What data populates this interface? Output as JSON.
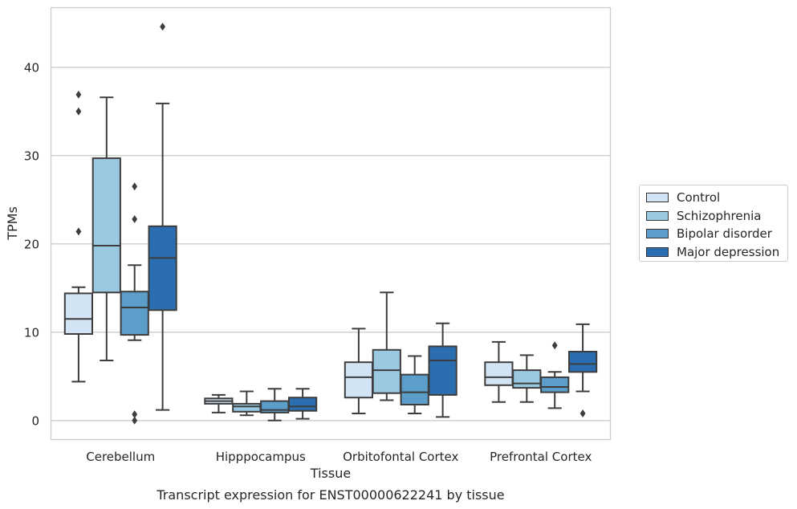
{
  "chart_data": {
    "type": "box",
    "caption": "Transcript expression for ENST00000622241 by tissue",
    "xlabel": "Tissue",
    "ylabel": "TPMs",
    "ylim": [
      -2.2,
      46.8
    ],
    "yticks": [
      0,
      10,
      20,
      30,
      40
    ],
    "grid": "horizontal",
    "legend_position": "right",
    "categories": [
      "Cerebellum",
      "Hipppocampus",
      "Orbitofontal Cortex",
      "Prefrontal Cortex"
    ],
    "series": [
      {
        "name": "Control",
        "color": "#d2e3f3",
        "boxes": [
          {
            "whisker_low": 4.4,
            "q1": 9.8,
            "median": 11.5,
            "q3": 14.4,
            "whisker_high": 15.1,
            "outliers": []
          },
          {
            "whisker_low": 0.9,
            "q1": 1.9,
            "median": 2.2,
            "q3": 2.5,
            "whisker_high": 2.9,
            "outliers": []
          },
          {
            "whisker_low": 0.8,
            "q1": 2.6,
            "median": 4.9,
            "q3": 6.6,
            "whisker_high": 10.4,
            "outliers": []
          },
          {
            "whisker_low": 2.1,
            "q1": 4.0,
            "median": 4.9,
            "q3": 6.6,
            "whisker_high": 8.9,
            "outliers": []
          }
        ]
      },
      {
        "name": "Schizophrenia",
        "color": "#9ac8e0",
        "boxes": [
          {
            "whisker_low": 6.8,
            "q1": 14.5,
            "median": 19.8,
            "q3": 29.7,
            "whisker_high": 36.6,
            "outliers": []
          },
          {
            "whisker_low": 0.6,
            "q1": 1.0,
            "median": 1.6,
            "q3": 1.9,
            "whisker_high": 3.3,
            "outliers": []
          },
          {
            "whisker_low": 2.3,
            "q1": 3.1,
            "median": 5.7,
            "q3": 8.0,
            "whisker_high": 14.5,
            "outliers": []
          },
          {
            "whisker_low": 2.1,
            "q1": 3.7,
            "median": 4.2,
            "q3": 5.7,
            "whisker_high": 7.4,
            "outliers": []
          }
        ]
      },
      {
        "name": "Bipolar disorder",
        "color": "#5a9ec9",
        "boxes": [
          {
            "whisker_low": 9.1,
            "q1": 9.7,
            "median": 12.8,
            "q3": 14.6,
            "whisker_high": 17.6,
            "outliers": [
              0.7,
              0.0,
              22.8,
              26.5
            ]
          },
          {
            "whisker_low": 0.0,
            "q1": 0.9,
            "median": 1.2,
            "q3": 2.2,
            "whisker_high": 3.6,
            "outliers": []
          },
          {
            "whisker_low": 0.8,
            "q1": 1.8,
            "median": 3.2,
            "q3": 5.2,
            "whisker_high": 7.3,
            "outliers": []
          },
          {
            "whisker_low": 1.4,
            "q1": 3.2,
            "median": 3.8,
            "q3": 4.9,
            "whisker_high": 5.5,
            "outliers": [
              8.5
            ]
          }
        ]
      },
      {
        "name": "Major depression",
        "color": "#2a6eb1",
        "boxes": [
          {
            "whisker_low": 1.2,
            "q1": 12.5,
            "median": 18.4,
            "q3": 22.0,
            "whisker_high": 35.9,
            "outliers": [
              44.6
            ]
          },
          {
            "whisker_low": 0.2,
            "q1": 1.1,
            "median": 1.6,
            "q3": 2.6,
            "whisker_high": 3.6,
            "outliers": []
          },
          {
            "whisker_low": 0.4,
            "q1": 2.9,
            "median": 6.8,
            "q3": 8.4,
            "whisker_high": 11.0,
            "outliers": []
          },
          {
            "whisker_low": 3.3,
            "q1": 5.5,
            "median": 6.4,
            "q3": 7.8,
            "whisker_high": 10.9,
            "outliers": [
              0.8
            ]
          }
        ]
      }
    ],
    "extra_outliers": [
      {
        "category": "Cerebellum",
        "series": "Control",
        "values": [
          21.4,
          35.0,
          36.9
        ]
      }
    ]
  }
}
